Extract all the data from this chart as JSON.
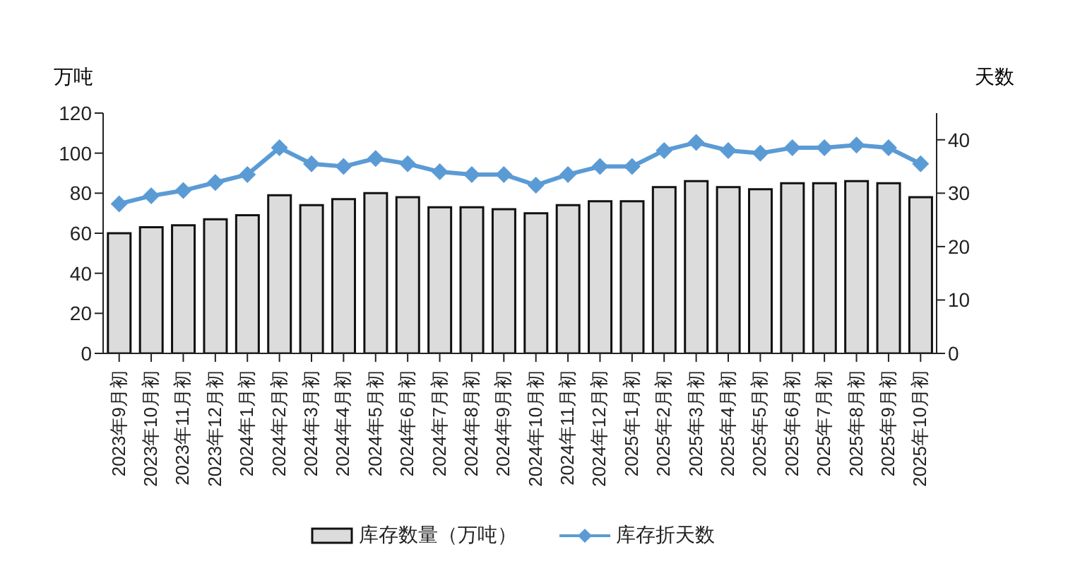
{
  "chart_data": {
    "type": "bar",
    "ylabel": "万吨",
    "y2label": "天数",
    "categories": [
      "2023年9月初",
      "2023年10月初",
      "2023年11月初",
      "2023年12月初",
      "2024年1月初",
      "2024年2月初",
      "2024年3月初",
      "2024年4月初",
      "2024年5月初",
      "2024年6月初",
      "2024年7月初",
      "2024年8月初",
      "2024年9月初",
      "2024年10月初",
      "2024年11月初",
      "2024年12月初",
      "2025年1月初",
      "2025年2月初",
      "2025年3月初",
      "2025年4月初",
      "2025年5月初",
      "2025年6月初",
      "2025年7月初",
      "2025年8月初",
      "2025年9月初",
      "2025年10月初"
    ],
    "series": [
      {
        "name": "库存数量（万吨）",
        "color": "#dcdcdc",
        "values": [
          60,
          63,
          64,
          67,
          69,
          79,
          74,
          77,
          80,
          78,
          73,
          73,
          72,
          70,
          74,
          76,
          76,
          83,
          86,
          83,
          82,
          85,
          85,
          86,
          85,
          78
        ]
      },
      {
        "name": "库存折天数",
        "type": "line",
        "axis": "y2",
        "color": "#5b9bd5",
        "marker": "diamond",
        "values": [
          28,
          29.5,
          30.5,
          32,
          33.5,
          38.5,
          35.5,
          35,
          36.5,
          35.5,
          34,
          33.5,
          33.5,
          31.5,
          33.5,
          35,
          35,
          38,
          39.5,
          38,
          37.5,
          38.5,
          38.5,
          39,
          38.5,
          35.5
        ]
      }
    ],
    "ylim": [
      0,
      120
    ],
    "yticks": [
      0,
      20,
      40,
      60,
      80,
      100,
      120
    ],
    "y2lim": [
      0,
      45
    ],
    "y2ticks": [
      0,
      10,
      20,
      30,
      40
    ],
    "grid": false,
    "legend": "bottom"
  }
}
